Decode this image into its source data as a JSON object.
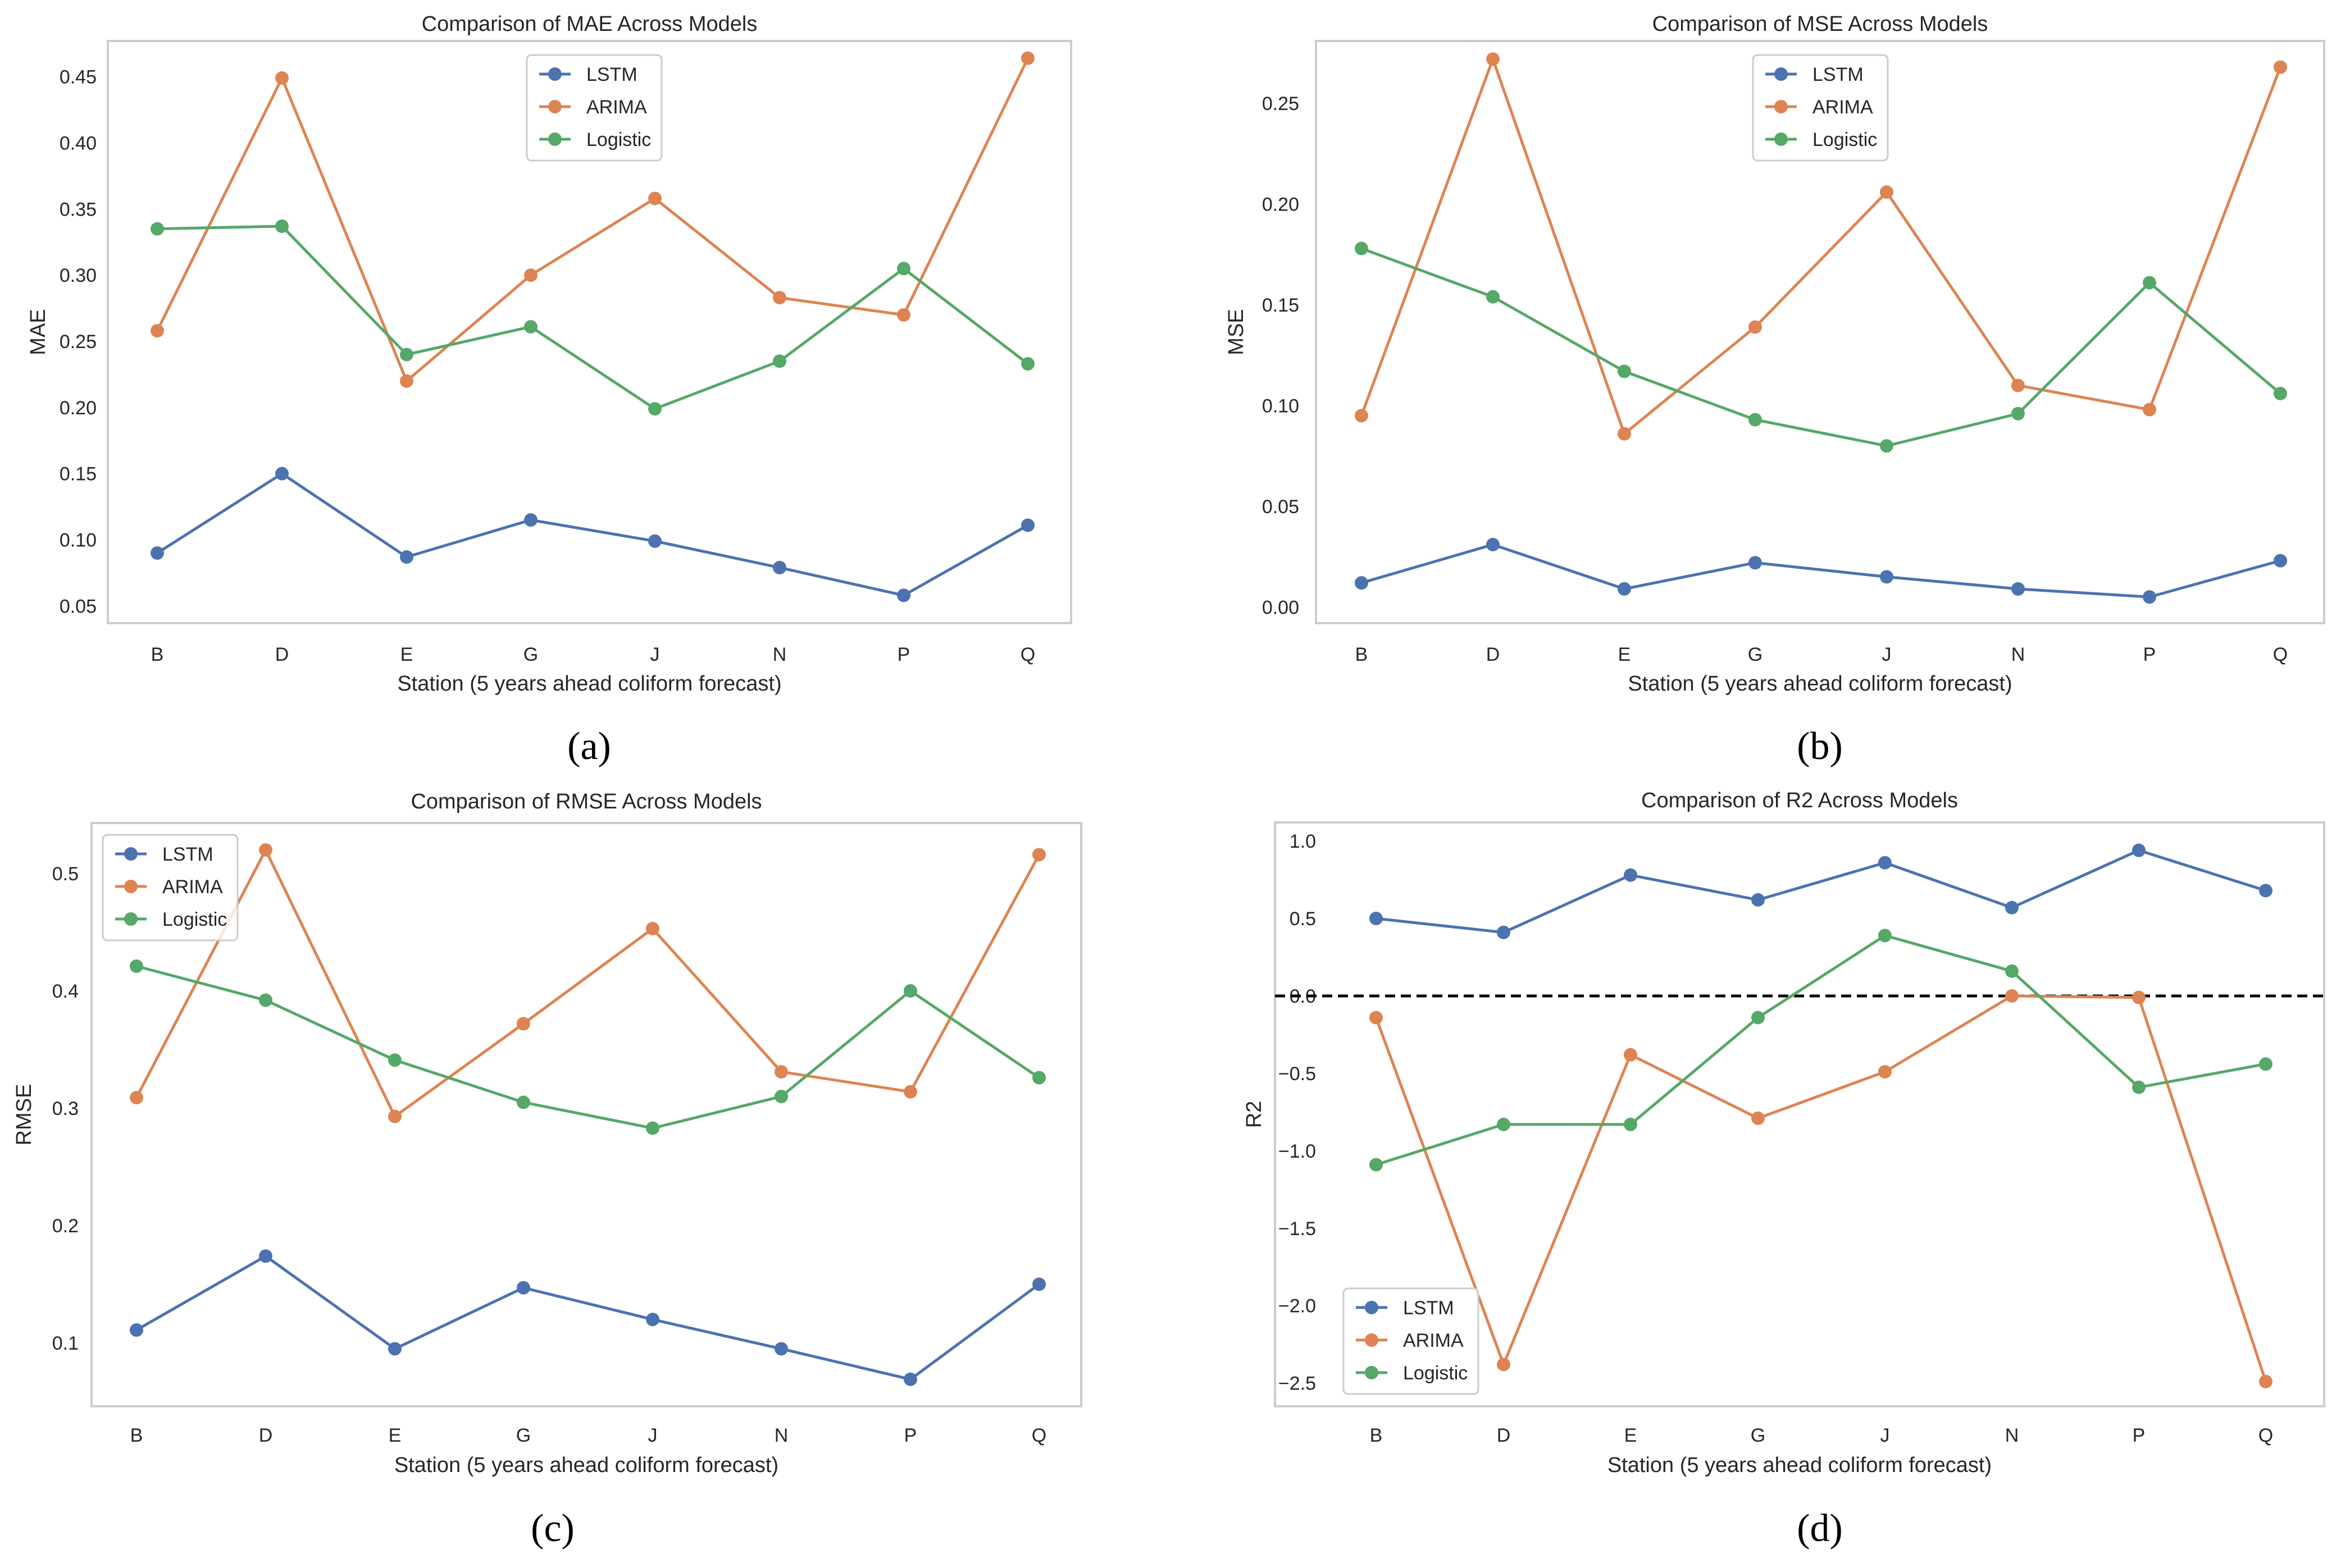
{
  "colors": {
    "LSTM": "#4C72B0",
    "ARIMA": "#DD8452",
    "Logistic": "#55A868"
  },
  "chart_data": [
    {
      "type": "line",
      "panel_label": "(a)",
      "title": "Comparison of MAE Across Models",
      "xlabel": "Station (5 years ahead coliform forecast)",
      "ylabel": "MAE",
      "categories": [
        "B",
        "D",
        "E",
        "G",
        "J",
        "N",
        "P",
        "Q"
      ],
      "ylim": [
        0.037,
        0.477
      ],
      "yticks": [
        "0.05",
        "0.10",
        "0.15",
        "0.20",
        "0.25",
        "0.30",
        "0.35",
        "0.40",
        "0.45"
      ],
      "legend_position": "upper center",
      "grid": false,
      "series": [
        {
          "name": "LSTM",
          "values": [
            0.09,
            0.15,
            0.087,
            0.115,
            0.099,
            0.079,
            0.058,
            0.111
          ]
        },
        {
          "name": "ARIMA",
          "values": [
            0.258,
            0.449,
            0.22,
            0.3,
            0.358,
            0.283,
            0.27,
            0.464
          ]
        },
        {
          "name": "Logistic",
          "values": [
            0.335,
            0.337,
            0.24,
            0.261,
            0.199,
            0.235,
            0.305,
            0.233
          ]
        }
      ]
    },
    {
      "type": "line",
      "panel_label": "(b)",
      "title": "Comparison of MSE Across Models",
      "xlabel": "Station (5 years ahead coliform forecast)",
      "ylabel": "MSE",
      "categories": [
        "B",
        "D",
        "E",
        "G",
        "J",
        "N",
        "P",
        "Q"
      ],
      "ylim": [
        -0.008,
        0.281
      ],
      "yticks": [
        "0.00",
        "0.05",
        "0.10",
        "0.15",
        "0.20",
        "0.25"
      ],
      "legend_position": "upper center",
      "grid": false,
      "series": [
        {
          "name": "LSTM",
          "values": [
            0.012,
            0.031,
            0.009,
            0.022,
            0.015,
            0.009,
            0.005,
            0.023
          ]
        },
        {
          "name": "ARIMA",
          "values": [
            0.095,
            0.272,
            0.086,
            0.139,
            0.206,
            0.11,
            0.098,
            0.268
          ]
        },
        {
          "name": "Logistic",
          "values": [
            0.178,
            0.154,
            0.117,
            0.093,
            0.08,
            0.096,
            0.161,
            0.106
          ]
        }
      ]
    },
    {
      "type": "line",
      "panel_label": "(c)",
      "title": "Comparison of RMSE Across Models",
      "xlabel": "Station (5 years ahead coliform forecast)",
      "ylabel": "RMSE",
      "categories": [
        "B",
        "D",
        "E",
        "G",
        "J",
        "N",
        "P",
        "Q"
      ],
      "ylim": [
        0.046,
        0.543
      ],
      "yticks": [
        "0.1",
        "0.2",
        "0.3",
        "0.4",
        "0.5"
      ],
      "legend_position": "upper left",
      "grid": false,
      "series": [
        {
          "name": "LSTM",
          "values": [
            0.111,
            0.174,
            0.095,
            0.147,
            0.12,
            0.095,
            0.069,
            0.15
          ]
        },
        {
          "name": "ARIMA",
          "values": [
            0.309,
            0.52,
            0.293,
            0.372,
            0.453,
            0.331,
            0.314,
            0.516
          ]
        },
        {
          "name": "Logistic",
          "values": [
            0.421,
            0.392,
            0.341,
            0.305,
            0.283,
            0.31,
            0.4,
            0.326
          ]
        }
      ]
    },
    {
      "type": "line",
      "panel_label": "(d)",
      "title": "Comparison of R2 Across Models",
      "xlabel": "Station (5 years ahead coliform forecast)",
      "ylabel": "R2",
      "categories": [
        "B",
        "D",
        "E",
        "G",
        "J",
        "N",
        "P",
        "Q"
      ],
      "ylim": [
        -2.65,
        1.12
      ],
      "yticks": [
        "1.0",
        "0.5",
        "0.0",
        "−0.5",
        "−1.0",
        "−1.5",
        "−2.0",
        "−2.5"
      ],
      "yticks_values": [
        1.0,
        0.5,
        0.0,
        -0.5,
        -1.0,
        -1.5,
        -2.0,
        -2.5
      ],
      "reference_line": 0.0,
      "legend_position": "lower left",
      "grid": false,
      "series": [
        {
          "name": "LSTM",
          "values": [
            0.5,
            0.41,
            0.78,
            0.62,
            0.86,
            0.57,
            0.94,
            0.68
          ]
        },
        {
          "name": "ARIMA",
          "values": [
            -0.14,
            -2.38,
            -0.38,
            -0.79,
            -0.49,
            0.0,
            -0.01,
            -2.49
          ]
        },
        {
          "name": "Logistic",
          "values": [
            -1.09,
            -0.83,
            -0.83,
            -0.14,
            0.39,
            0.16,
            -0.59,
            -0.44
          ]
        }
      ]
    }
  ]
}
